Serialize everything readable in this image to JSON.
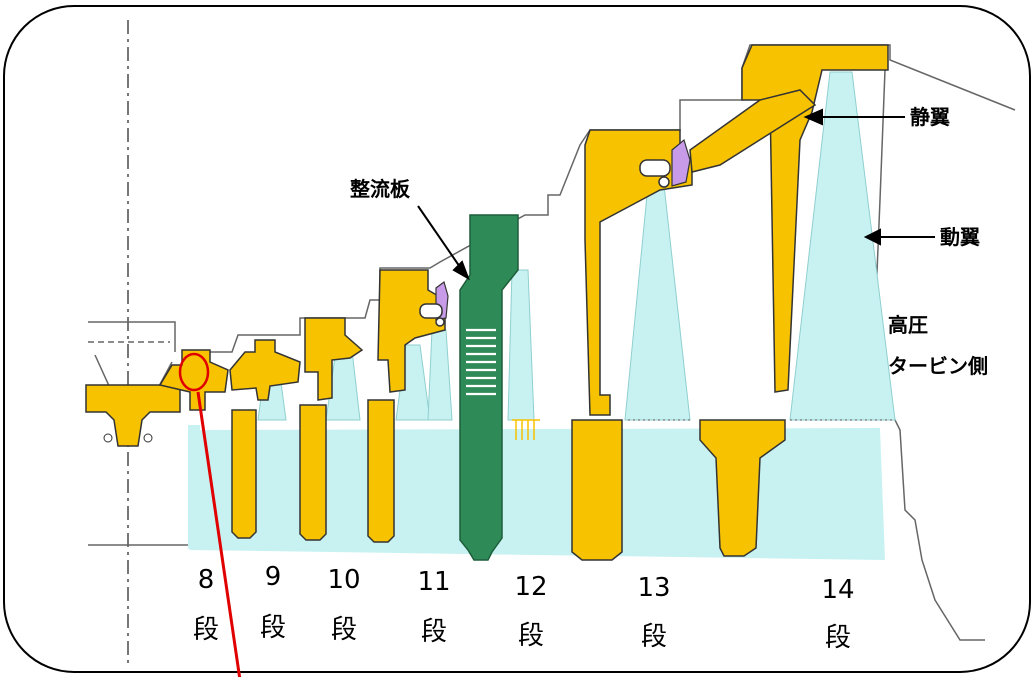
{
  "colors": {
    "stator": "#f7c200",
    "rotor_disk": "#c8f2f2",
    "flow_guide": "#2e8b57",
    "seal": "#c79be8",
    "outline": "#333333",
    "marker": "#e00000",
    "frame": "#000000"
  },
  "callouts": {
    "flow_guide_plate": "整流板",
    "stator_vane": "静翼",
    "rotor_blade": "動翼",
    "hp_turbine_side_line1": "高圧",
    "hp_turbine_side_line2": "タービン側"
  },
  "stages": [
    {
      "number": "8",
      "unit": "段"
    },
    {
      "number": "9",
      "unit": "段"
    },
    {
      "number": "10",
      "unit": "段"
    },
    {
      "number": "11",
      "unit": "段"
    },
    {
      "number": "12",
      "unit": "段"
    },
    {
      "number": "13",
      "unit": "段"
    },
    {
      "number": "14",
      "unit": "段"
    }
  ]
}
